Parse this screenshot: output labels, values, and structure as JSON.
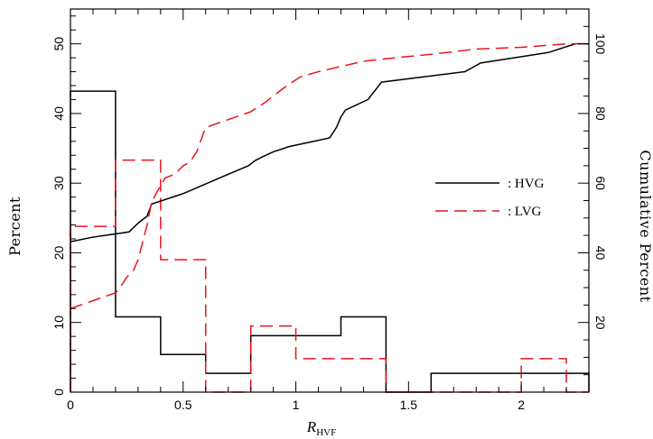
{
  "chart_data": {
    "type": "histogram-with-cumulative",
    "xlabel_main": "R",
    "xlabel_sub": "HVF",
    "ylabel_left": "Percent",
    "ylabel_right": "Cumulative Percent",
    "xlim": [
      0,
      2.3
    ],
    "ylim_left": [
      0,
      55
    ],
    "ylim_right": [
      0,
      110
    ],
    "x_ticks": [
      0,
      0.5,
      1,
      1.5,
      2
    ],
    "x_tick_labels": [
      "0",
      "0.5",
      "1",
      "1.5",
      "2"
    ],
    "y_left_ticks": [
      0,
      10,
      20,
      30,
      40,
      50
    ],
    "y_left_tick_labels": [
      "0",
      "10",
      "20",
      "30",
      "40",
      "50"
    ],
    "y_right_ticks": [
      20,
      40,
      60,
      80,
      100
    ],
    "y_right_tick_labels": [
      "20",
      "40",
      "60",
      "80",
      "100"
    ],
    "bin_edges": [
      0,
      0.2,
      0.4,
      0.6,
      0.8,
      1.0,
      1.2,
      1.4,
      1.6,
      1.8,
      2.0,
      2.2,
      2.3
    ],
    "colors": {
      "HVG": "#000000",
      "LVG": "#e8141b"
    },
    "histograms": [
      {
        "name": "HVG",
        "values": [
          43.2,
          10.8,
          5.4,
          2.7,
          8.1,
          8.1,
          10.8,
          0,
          2.7,
          2.7,
          2.7,
          2.7
        ]
      },
      {
        "name": "LVG",
        "values": [
          23.8,
          33.3,
          19.0,
          0,
          9.5,
          4.8,
          4.8,
          0,
          0,
          0,
          4.8,
          0
        ]
      }
    ],
    "cumulative": [
      {
        "name": "HVG",
        "x": [
          0,
          0.1,
          0.26,
          0.3,
          0.34,
          0.36,
          0.5,
          0.68,
          0.79,
          0.82,
          0.85,
          0.9,
          0.97,
          1.15,
          1.18,
          1.2,
          1.22,
          1.32,
          1.38,
          1.75,
          1.82,
          2.12,
          2.24,
          2.3
        ],
        "y": [
          43.2,
          44.5,
          46,
          48.5,
          50.5,
          54,
          57,
          62,
          65,
          66.5,
          67.5,
          69,
          70.5,
          73,
          76,
          79,
          81,
          84,
          89,
          92,
          94.5,
          97.5,
          100,
          100
        ]
      },
      {
        "name": "LVG",
        "x": [
          0,
          0.2,
          0.22,
          0.25,
          0.28,
          0.3,
          0.34,
          0.36,
          0.38,
          0.42,
          0.46,
          0.5,
          0.53,
          0.56,
          0.6,
          0.8,
          0.86,
          0.9,
          0.96,
          1.02,
          1.1,
          1.3,
          1.44,
          1.6,
          1.8,
          2.0,
          2.2,
          2.3
        ],
        "y": [
          24,
          28.5,
          30,
          33,
          35,
          38,
          48,
          54.5,
          57,
          61.5,
          62.5,
          65,
          66,
          69,
          76,
          80.5,
          83,
          85,
          88,
          90.5,
          92,
          95,
          96,
          97,
          98.5,
          99,
          100,
          100
        ]
      }
    ],
    "legend_position": "right-center",
    "legend": [
      {
        "series": "HVG",
        "label": ":  HVG",
        "style": "solid"
      },
      {
        "series": "LVG",
        "label": ":  LVG",
        "style": "dashed"
      }
    ]
  }
}
